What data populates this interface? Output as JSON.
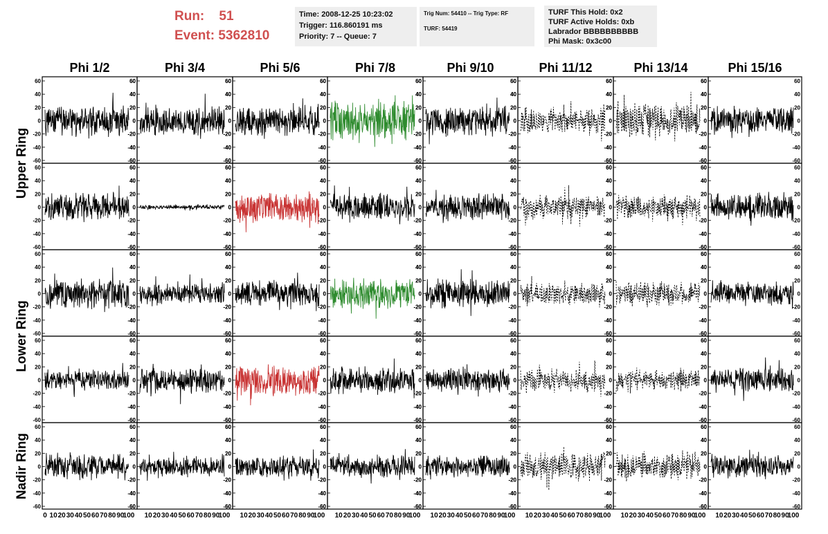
{
  "header": {
    "run_label": "Run:",
    "run_value": "51",
    "event_label": "Event:",
    "event_value": "5362810",
    "time": "Time: 2008-12-25 10:23:02",
    "trigger": "Trigger: 116.860191 ms",
    "priority": "Priority: 7 -- Queue: 7",
    "trig_num": "Trig Num: 54410 -- Trig Type: RF",
    "turf": "TURF: 54419",
    "turf_this_hold": "TURF This Hold: 0x2",
    "turf_active_holds": "TURF Active Holds: 0xb",
    "labrador": "Labrador BBBBBBBBBB",
    "phi_mask": "Phi Mask: 0x3c00"
  },
  "columns": [
    "Phi 1/2",
    "Phi 3/4",
    "Phi 5/6",
    "Phi 7/8",
    "Phi 9/10",
    "Phi 11/12",
    "Phi 13/14",
    "Phi 15/16"
  ],
  "row_groups": [
    "Upper Ring",
    "Lower Ring",
    "Nadir Ring"
  ],
  "colors": {
    "normal": "#000000",
    "triggered_green": "#2e8b2e",
    "triggered_red": "#c83232",
    "header_red": "#d05050",
    "box_bg": "#eeeeee"
  },
  "chart_data": {
    "type": "line",
    "description_note": "",
    "x_range": [
      0,
      100
    ],
    "y_range": [
      -60,
      60
    ],
    "y_ticks": [
      -60,
      -40,
      -20,
      0,
      20,
      40,
      60
    ],
    "x_ticks": [
      0,
      10,
      20,
      30,
      40,
      50,
      60,
      70,
      80,
      90,
      100
    ],
    "x_tick_labels_col0": [
      "0",
      "10",
      "20",
      "30",
      "40",
      "50",
      "60",
      "70",
      "80",
      "90",
      "100"
    ],
    "x_tick_labels_other": [
      "10",
      "20",
      "30",
      "40",
      "50",
      "60",
      "70",
      "80",
      "90",
      "100"
    ],
    "panels": [
      [
        {
          "amp": 18,
          "style": "solid",
          "color": "normal",
          "seed": 11
        },
        {
          "amp": 18,
          "style": "solid",
          "color": "normal",
          "seed": 12
        },
        {
          "amp": 18,
          "style": "solid",
          "color": "normal",
          "seed": 13
        },
        {
          "amp": 26,
          "style": "solid",
          "color": "triggered_green",
          "seed": 14
        },
        {
          "amp": 18,
          "style": "solid",
          "color": "normal",
          "seed": 15
        },
        {
          "amp": 16,
          "style": "dashed",
          "color": "normal",
          "seed": 16
        },
        {
          "amp": 22,
          "style": "dashed",
          "color": "normal",
          "seed": 17
        },
        {
          "amp": 17,
          "style": "solid",
          "color": "normal",
          "seed": 18
        }
      ],
      [
        {
          "amp": 17,
          "style": "solid",
          "color": "normal",
          "seed": 21
        },
        {
          "amp": 3,
          "style": "solid",
          "color": "normal",
          "seed": 22
        },
        {
          "amp": 18,
          "style": "solid",
          "color": "triggered_red",
          "seed": 23
        },
        {
          "amp": 16,
          "style": "solid",
          "color": "normal",
          "seed": 24
        },
        {
          "amp": 16,
          "style": "solid",
          "color": "normal",
          "seed": 25
        },
        {
          "amp": 15,
          "style": "dashed",
          "color": "normal",
          "seed": 26
        },
        {
          "amp": 15,
          "style": "dashed",
          "color": "normal",
          "seed": 27
        },
        {
          "amp": 17,
          "style": "solid",
          "color": "normal",
          "seed": 28
        }
      ],
      [
        {
          "amp": 18,
          "style": "solid",
          "color": "normal",
          "seed": 31
        },
        {
          "amp": 13,
          "style": "solid",
          "color": "normal",
          "seed": 32
        },
        {
          "amp": 16,
          "style": "solid",
          "color": "normal",
          "seed": 33
        },
        {
          "amp": 18,
          "style": "solid",
          "color": "triggered_green",
          "seed": 34
        },
        {
          "amp": 17,
          "style": "solid",
          "color": "normal",
          "seed": 35
        },
        {
          "amp": 14,
          "style": "dashed",
          "color": "normal",
          "seed": 36
        },
        {
          "amp": 15,
          "style": "dashed",
          "color": "normal",
          "seed": 37
        },
        {
          "amp": 15,
          "style": "solid",
          "color": "normal",
          "seed": 38
        }
      ],
      [
        {
          "amp": 13,
          "style": "solid",
          "color": "normal",
          "seed": 41
        },
        {
          "amp": 16,
          "style": "solid",
          "color": "normal",
          "seed": 42
        },
        {
          "amp": 18,
          "style": "solid",
          "color": "triggered_red",
          "seed": 43
        },
        {
          "amp": 16,
          "style": "solid",
          "color": "normal",
          "seed": 44
        },
        {
          "amp": 14,
          "style": "solid",
          "color": "normal",
          "seed": 45
        },
        {
          "amp": 14,
          "style": "dashed",
          "color": "normal",
          "seed": 46
        },
        {
          "amp": 12,
          "style": "dashed",
          "color": "normal",
          "seed": 47
        },
        {
          "amp": 15,
          "style": "solid",
          "color": "normal",
          "seed": 48
        }
      ],
      [
        {
          "amp": 16,
          "style": "solid",
          "color": "normal",
          "seed": 51
        },
        {
          "amp": 12,
          "style": "solid",
          "color": "normal",
          "seed": 52
        },
        {
          "amp": 13,
          "style": "solid",
          "color": "normal",
          "seed": 53
        },
        {
          "amp": 13,
          "style": "solid",
          "color": "normal",
          "seed": 54
        },
        {
          "amp": 13,
          "style": "solid",
          "color": "normal",
          "seed": 55
        },
        {
          "amp": 17,
          "style": "dashed",
          "color": "normal",
          "seed": 56
        },
        {
          "amp": 17,
          "style": "dashed",
          "color": "normal",
          "seed": 57
        },
        {
          "amp": 15,
          "style": "solid",
          "color": "normal",
          "seed": 58
        }
      ]
    ]
  }
}
